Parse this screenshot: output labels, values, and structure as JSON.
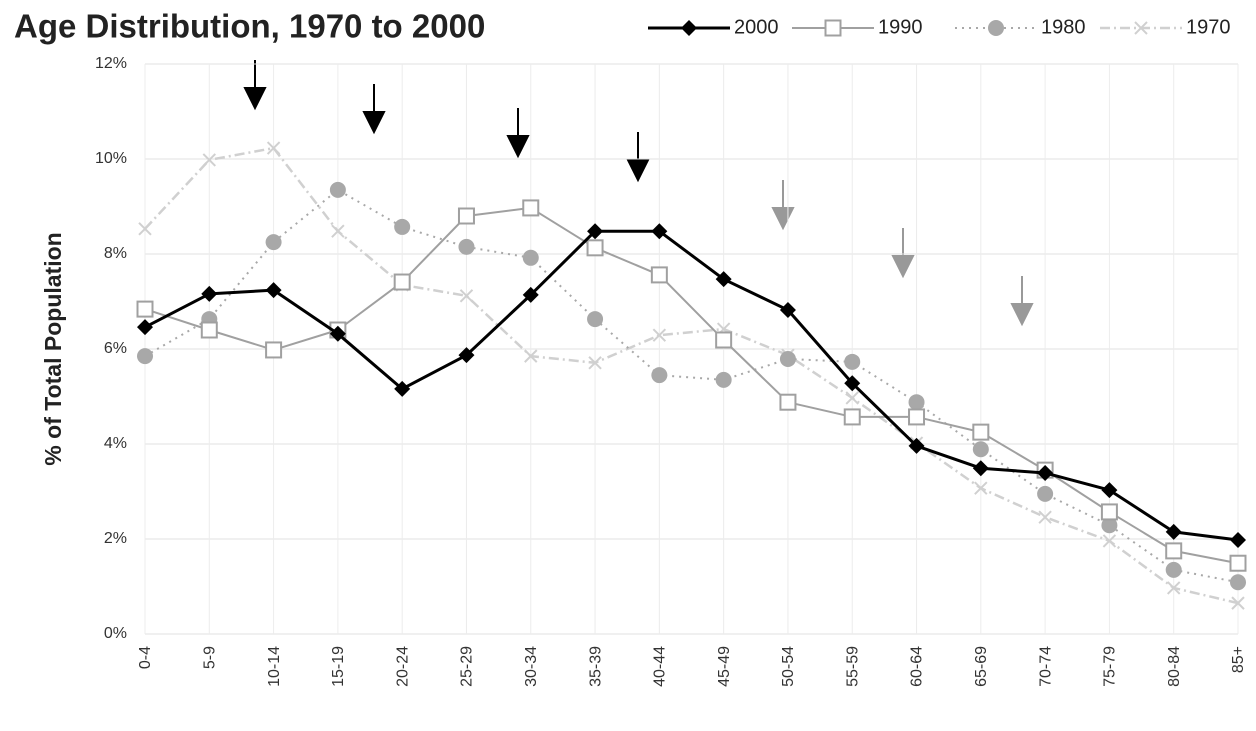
{
  "chart_data": {
    "type": "line",
    "title": "Age Distribution, 1970 to 2000",
    "y_label": "% of Total Population",
    "categories": [
      "0-4",
      "5-9",
      "10-14",
      "15-19",
      "20-24",
      "25-29",
      "30-34",
      "35-39",
      "40-44",
      "45-49",
      "50-54",
      "55-59",
      "60-64",
      "65-69",
      "70-74",
      "75-79",
      "80-84",
      "85+"
    ],
    "series": [
      {
        "name": "2000",
        "color": "#000000",
        "width": 3,
        "dash": "none",
        "marker": "diamond",
        "values": [
          6.46,
          7.16,
          7.24,
          6.32,
          5.16,
          5.87,
          7.14,
          8.48,
          8.48,
          7.47,
          6.82,
          5.28,
          3.96,
          3.49,
          3.39,
          3.03,
          2.15,
          1.98
        ]
      },
      {
        "name": "1990",
        "color": "#a0a0a0",
        "width": 2,
        "dash": "none",
        "marker": "square",
        "values": [
          6.84,
          6.4,
          5.98,
          6.4,
          7.41,
          8.8,
          8.97,
          8.13,
          7.56,
          6.19,
          4.88,
          4.57,
          4.57,
          4.25,
          3.45,
          2.57,
          1.75,
          1.49
        ]
      },
      {
        "name": "1980",
        "color": "#a8a8a8",
        "width": 2,
        "dash": "2 5",
        "marker": "circle",
        "values": [
          5.85,
          6.63,
          8.25,
          9.35,
          8.57,
          8.15,
          7.92,
          6.63,
          5.45,
          5.35,
          5.79,
          5.73,
          4.88,
          3.89,
          2.95,
          2.29,
          1.35,
          1.09
        ]
      },
      {
        "name": "1970",
        "color": "#d0d0d0",
        "width": 2.5,
        "dash": "10 4 2 4",
        "marker": "x",
        "values": [
          8.53,
          9.98,
          10.23,
          8.48,
          7.35,
          7.12,
          5.85,
          5.71,
          6.29,
          6.42,
          5.87,
          4.97,
          4.02,
          3.07,
          2.46,
          1.96,
          0.97,
          0.65
        ]
      }
    ],
    "ylim": [
      0,
      12
    ],
    "yticks": [
      {
        "value": 0,
        "label": "0%"
      },
      {
        "value": 2,
        "label": "2%"
      },
      {
        "value": 4,
        "label": "4%"
      },
      {
        "value": 6,
        "label": "6%"
      },
      {
        "value": 8,
        "label": "8%"
      },
      {
        "value": 10,
        "label": "10%"
      },
      {
        "value": 12,
        "label": "12%"
      }
    ],
    "grid": true
  }
}
